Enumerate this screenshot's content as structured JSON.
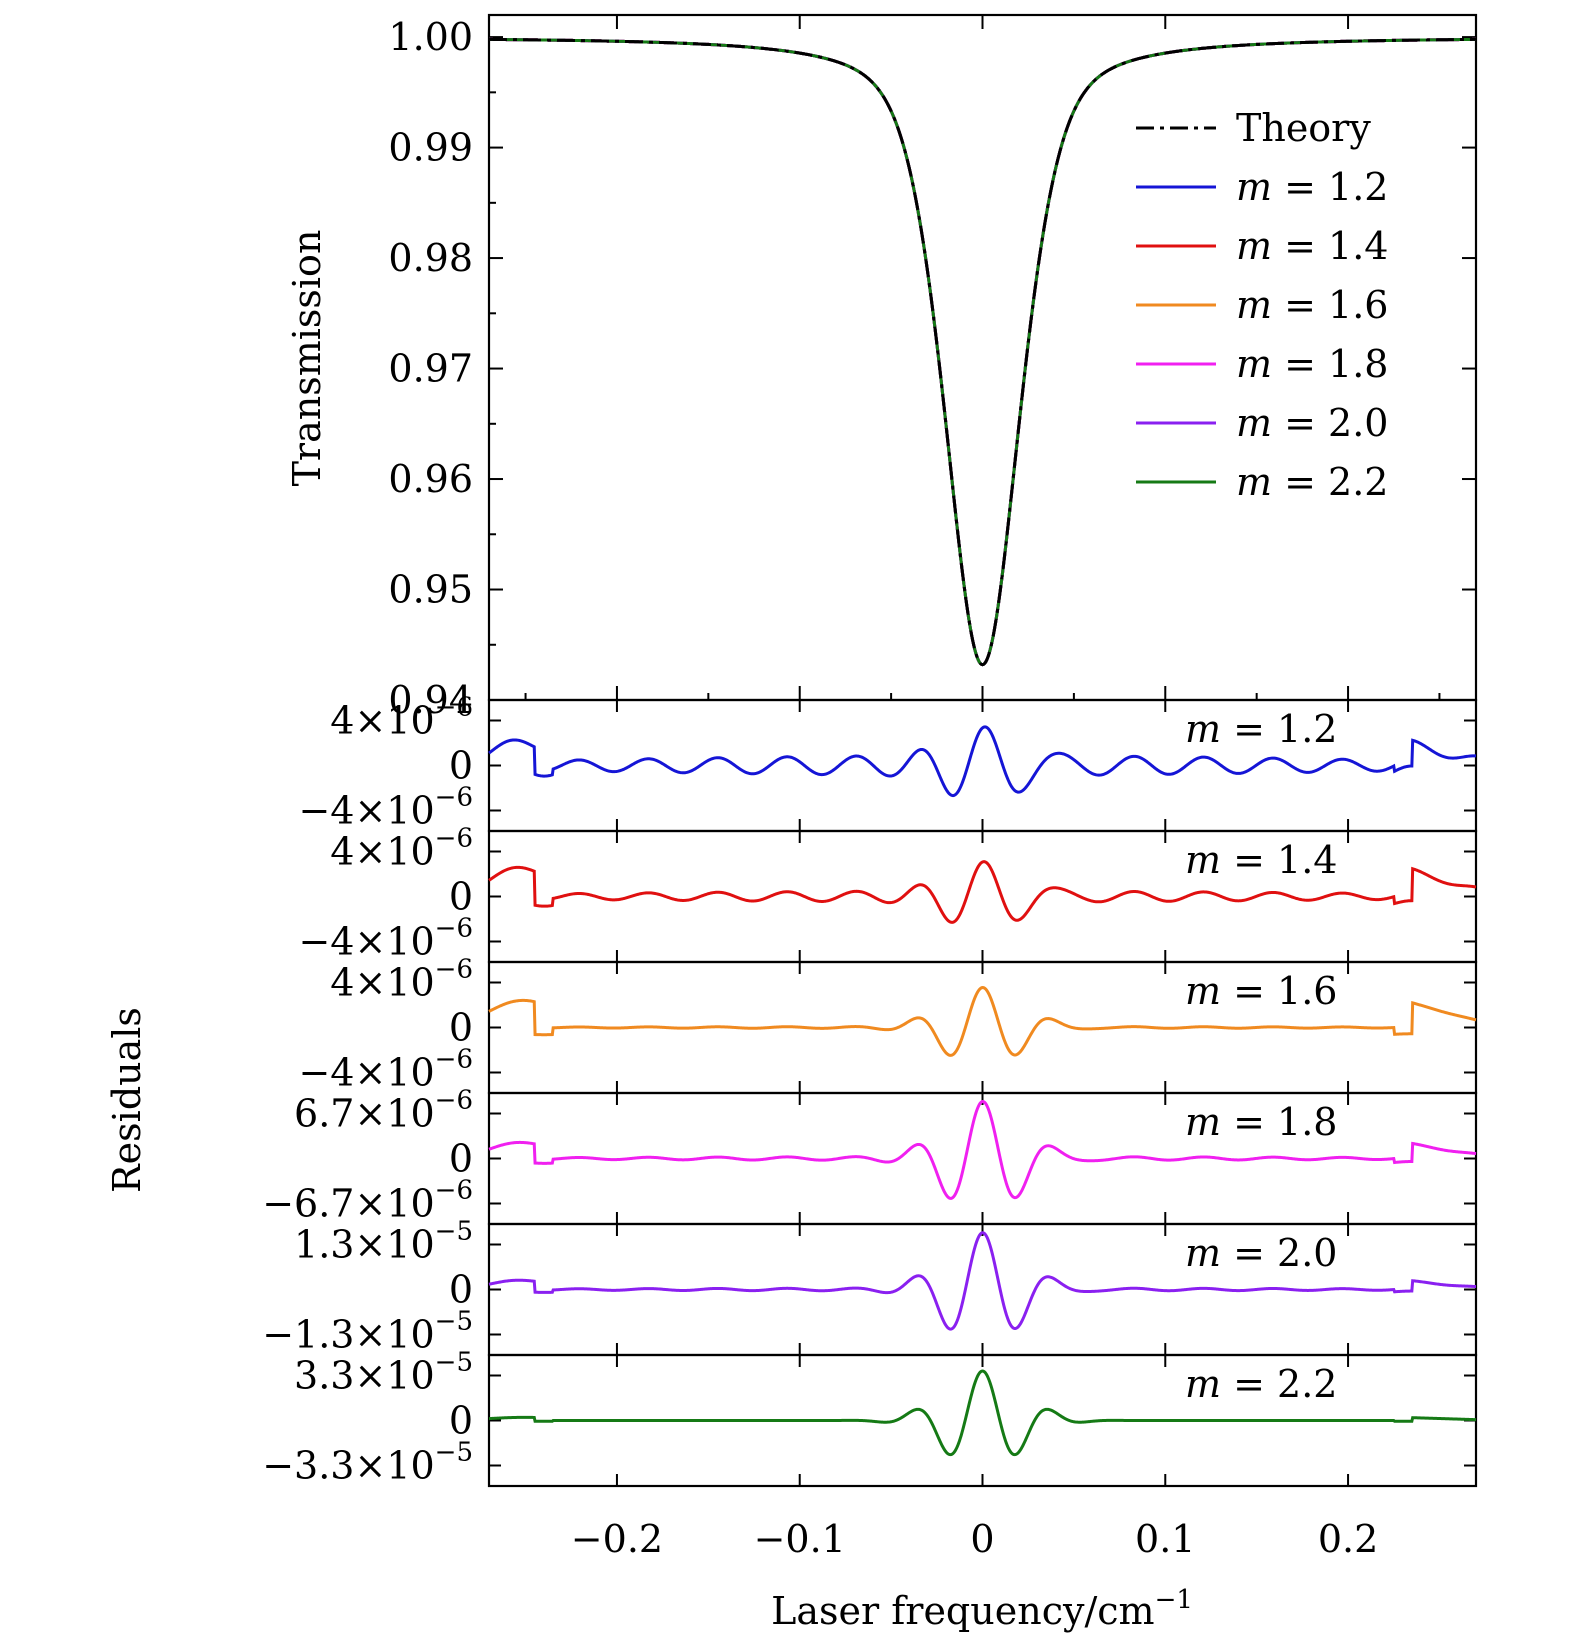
{
  "chart_data": [
    {
      "type": "line",
      "panel": "transmission",
      "ylabel": "Transmission",
      "xlabel": "Laser frequency/cm",
      "xlabel_sup": "−1",
      "xlim": [
        -0.27,
        0.27
      ],
      "ylim": [
        0.94,
        1.002
      ],
      "yticks": [
        "0.94",
        "0.95",
        "0.96",
        "0.97",
        "0.98",
        "0.99",
        "1.00"
      ],
      "ytick_values": [
        0.94,
        0.95,
        0.96,
        0.97,
        0.98,
        0.99,
        1.0
      ],
      "dip": {
        "center": 0,
        "min": 0.9432,
        "half_width_cm": 0.0245,
        "shape": "voigt-like"
      },
      "legend_position": "top-right",
      "legend": [
        {
          "prefix": "",
          "label": "Theory",
          "color": "#000000",
          "style": "dash-dot"
        },
        {
          "prefix": "m",
          "label": "= 1.2",
          "color": "#1515d6",
          "style": "solid"
        },
        {
          "prefix": "m",
          "label": "= 1.4",
          "color": "#e01010",
          "style": "solid"
        },
        {
          "prefix": "m",
          "label": "= 1.6",
          "color": "#f08a20",
          "style": "solid"
        },
        {
          "prefix": "m",
          "label": "= 1.8",
          "color": "#f020f0",
          "style": "solid"
        },
        {
          "prefix": "m",
          "label": "= 2.0",
          "color": "#8a20f0",
          "style": "solid"
        },
        {
          "prefix": "m",
          "label": "= 2.2",
          "color": "#157a15",
          "style": "solid"
        }
      ]
    },
    {
      "type": "line",
      "panel": "residuals",
      "ylabel": "Residuals",
      "xlim": [
        -0.27,
        0.27
      ],
      "xticks": [
        "−0.2",
        "−0.1",
        "0",
        "0.1",
        "0.2"
      ],
      "xtick_values": [
        -0.2,
        -0.1,
        0,
        0.1,
        0.2
      ],
      "subplots": [
        {
          "label_prefix": "m",
          "label": "= 1.2",
          "color": "#1515d6",
          "ytick_top": "4×10",
          "ytick_top_exp": "−6",
          "ytick_zero": "0",
          "ytick_bottom": "−4×10",
          "ytick_bottom_exp": "−6",
          "scale": 4e-06,
          "center_amp": 0.75,
          "osc_amp": 0.22,
          "edge_amp": 0.5
        },
        {
          "label_prefix": "m",
          "label": "= 1.4",
          "color": "#e01010",
          "ytick_top": "4×10",
          "ytick_top_exp": "−6",
          "ytick_zero": "0",
          "ytick_bottom": "−4×10",
          "ytick_bottom_exp": "−6",
          "scale": 4e-06,
          "center_amp": 0.72,
          "osc_amp": 0.12,
          "edge_amp": 0.62
        },
        {
          "label_prefix": "m",
          "label": "= 1.6",
          "color": "#f08a20",
          "ytick_top": "4×10",
          "ytick_top_exp": "−6",
          "ytick_zero": "0",
          "ytick_bottom": "−4×10",
          "ytick_bottom_exp": "−6",
          "scale": 4e-06,
          "center_amp": 0.88,
          "osc_amp": 0.02,
          "edge_amp": 0.6
        },
        {
          "label_prefix": "m",
          "label": "= 1.8",
          "color": "#f020f0",
          "ytick_top": "6.7×10",
          "ytick_top_exp": "−6",
          "ytick_zero": "0",
          "ytick_bottom": "−6.7×10",
          "ytick_bottom_exp": "−6",
          "scale": 6.7e-06,
          "center_amp": 1.25,
          "osc_amp": 0.04,
          "edge_amp": 0.35
        },
        {
          "label_prefix": "m",
          "label": "= 2.0",
          "color": "#8a20f0",
          "ytick_top": "1.3×10",
          "ytick_top_exp": "−5",
          "ytick_zero": "0",
          "ytick_bottom": "−1.3×10",
          "ytick_bottom_exp": "−5",
          "scale": 1.3e-05,
          "center_amp": 1.25,
          "osc_amp": 0.03,
          "edge_amp": 0.2
        },
        {
          "label_prefix": "m",
          "label": "= 2.2",
          "color": "#157a15",
          "ytick_top": "3.3×10",
          "ytick_top_exp": "−5",
          "ytick_zero": "0",
          "ytick_bottom": "−3.3×10",
          "ytick_bottom_exp": "−5",
          "scale": 3.3e-05,
          "center_amp": 1.1,
          "osc_amp": 0.0,
          "edge_amp": 0.07
        }
      ]
    }
  ]
}
